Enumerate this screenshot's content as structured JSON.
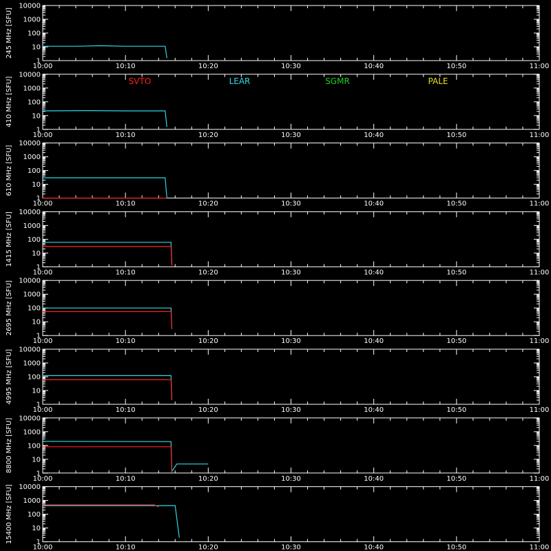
{
  "chart_data": {
    "type": "line",
    "x_ticks": [
      "10:00",
      "10:10",
      "10:20",
      "10:30",
      "10:40",
      "10:50",
      "11:00"
    ],
    "y_ticks": [
      "10000",
      "1000",
      "100",
      "10",
      "1"
    ],
    "y_scale": "log",
    "ylim": [
      1,
      10000
    ],
    "xlim": [
      "10:00",
      "11:00"
    ],
    "legend": [
      {
        "name": "SVTO",
        "color": "#ff2020"
      },
      {
        "name": "LEAR",
        "color": "#30d8e8"
      },
      {
        "name": "SGMR",
        "color": "#20d020"
      },
      {
        "name": "PALE",
        "color": "#e8e020"
      }
    ],
    "panels": [
      {
        "ylabel": "245 MHz [SFU]",
        "series": [
          {
            "name": "LEAR",
            "points": [
              [
                0,
                11
              ],
              [
                4,
                11
              ],
              [
                7,
                12
              ],
              [
                10,
                11
              ],
              [
                14.8,
                11
              ],
              [
                15,
                1.5
              ]
            ]
          }
        ]
      },
      {
        "ylabel": "410 MHz [SFU]",
        "series": [
          {
            "name": "LEAR",
            "points": [
              [
                0,
                22
              ],
              [
                5,
                23
              ],
              [
                10,
                22
              ],
              [
                14.8,
                22
              ],
              [
                15,
                1.5
              ]
            ]
          }
        ]
      },
      {
        "ylabel": "610 MHz [SFU]",
        "series": [
          {
            "name": "LEAR",
            "points": [
              [
                0,
                30
              ],
              [
                14.8,
                30
              ],
              [
                15,
                1
              ]
            ]
          },
          {
            "name": "SVTO",
            "points": [
              [
                0,
                1
              ],
              [
                15,
                1
              ]
            ]
          }
        ]
      },
      {
        "ylabel": "1415 MHz [SFU]",
        "series": [
          {
            "name": "LEAR",
            "points": [
              [
                0,
                60
              ],
              [
                15.5,
                60
              ],
              [
                15.6,
                1.5
              ]
            ]
          },
          {
            "name": "SVTO",
            "points": [
              [
                0,
                30
              ],
              [
                15.5,
                30
              ],
              [
                15.6,
                1.2
              ]
            ]
          }
        ]
      },
      {
        "ylabel": "2695 MHz [SFU]",
        "series": [
          {
            "name": "LEAR",
            "points": [
              [
                0,
                100
              ],
              [
                15.5,
                100
              ],
              [
                15.6,
                3
              ]
            ]
          },
          {
            "name": "SVTO",
            "points": [
              [
                0,
                55
              ],
              [
                15.5,
                55
              ],
              [
                15.6,
                3
              ]
            ]
          }
        ]
      },
      {
        "ylabel": "4995 MHz [SFU]",
        "series": [
          {
            "name": "LEAR",
            "points": [
              [
                0,
                120
              ],
              [
                15.5,
                120
              ],
              [
                15.6,
                2
              ]
            ]
          },
          {
            "name": "SVTO",
            "points": [
              [
                0,
                60
              ],
              [
                15.5,
                60
              ],
              [
                15.6,
                2
              ]
            ]
          }
        ]
      },
      {
        "ylabel": "8800 MHz [SFU]",
        "series": [
          {
            "name": "LEAR",
            "points": [
              [
                0,
                200
              ],
              [
                15.5,
                190
              ],
              [
                15.6,
                1.3
              ],
              [
                16.2,
                4.5
              ],
              [
                20,
                4.5
              ]
            ]
          },
          {
            "name": "SVTO",
            "points": [
              [
                0,
                80
              ],
              [
                15.5,
                80
              ],
              [
                15.6,
                1.3
              ]
            ]
          }
        ]
      },
      {
        "ylabel": "15400 MHz [SFU]",
        "series": [
          {
            "name": "LEAR",
            "points": [
              [
                0,
                420
              ],
              [
                16,
                420
              ],
              [
                16.5,
                2
              ]
            ]
          },
          {
            "name": "SVTO",
            "points": [
              [
                0,
                480
              ],
              [
                13.5,
                480
              ],
              [
                14,
                330
              ]
            ]
          }
        ]
      }
    ]
  }
}
